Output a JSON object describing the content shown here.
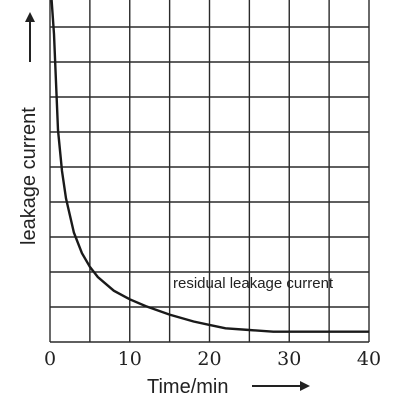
{
  "chart_data": {
    "type": "line",
    "title": "",
    "xlabel": "Time/min",
    "ylabel": "leakage current",
    "x_ticks": [
      "0",
      "10",
      "20",
      "30",
      "40"
    ],
    "xlim": [
      0,
      40
    ],
    "ylim": [
      0,
      1
    ],
    "y_ticks": [],
    "grid": true,
    "legend": "none",
    "annotation": "residual leakage current",
    "series": [
      {
        "x": [
          0.2,
          0.5,
          1,
          1.5,
          2,
          3,
          4,
          5,
          6,
          8,
          10,
          12,
          15,
          18,
          20,
          22,
          25,
          28,
          30,
          35,
          40
        ],
        "y": [
          1.0,
          0.9,
          0.62,
          0.5,
          0.42,
          0.32,
          0.26,
          0.22,
          0.19,
          0.15,
          0.125,
          0.105,
          0.08,
          0.06,
          0.05,
          0.04,
          0.035,
          0.03,
          0.03,
          0.03,
          0.03
        ]
      }
    ],
    "colors": {
      "line": "#1a1a1a",
      "grid": "#2a2a2a",
      "background": "#ffffff"
    }
  }
}
